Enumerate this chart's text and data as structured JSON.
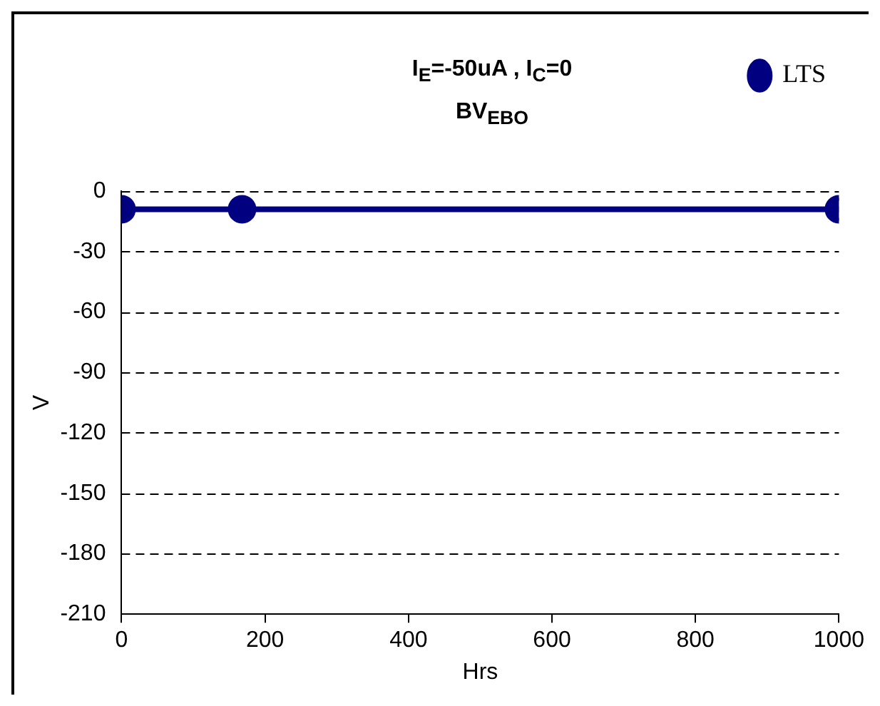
{
  "chart_data": {
    "type": "line",
    "title": "I$_{E}$=-50uA , I$_{C}$=0",
    "subtitle": "BV$_{EBO}$",
    "xlabel": "Hrs",
    "ylabel": "V",
    "series": [
      {
        "name": "LTS",
        "color": "#000080",
        "x": [
          0,
          168,
          1000
        ],
        "values": [
          -9,
          -9,
          -9
        ]
      }
    ],
    "xlim": [
      0,
      1000
    ],
    "xticks": [
      0,
      200,
      400,
      600,
      800,
      1000
    ],
    "ylim": [
      -210,
      0
    ],
    "yticks": [
      0,
      -30,
      -60,
      -90,
      -120,
      -150,
      -180,
      -210
    ],
    "grid": "y",
    "legend": "top right",
    "marker": "circle",
    "line_style": "solid"
  }
}
